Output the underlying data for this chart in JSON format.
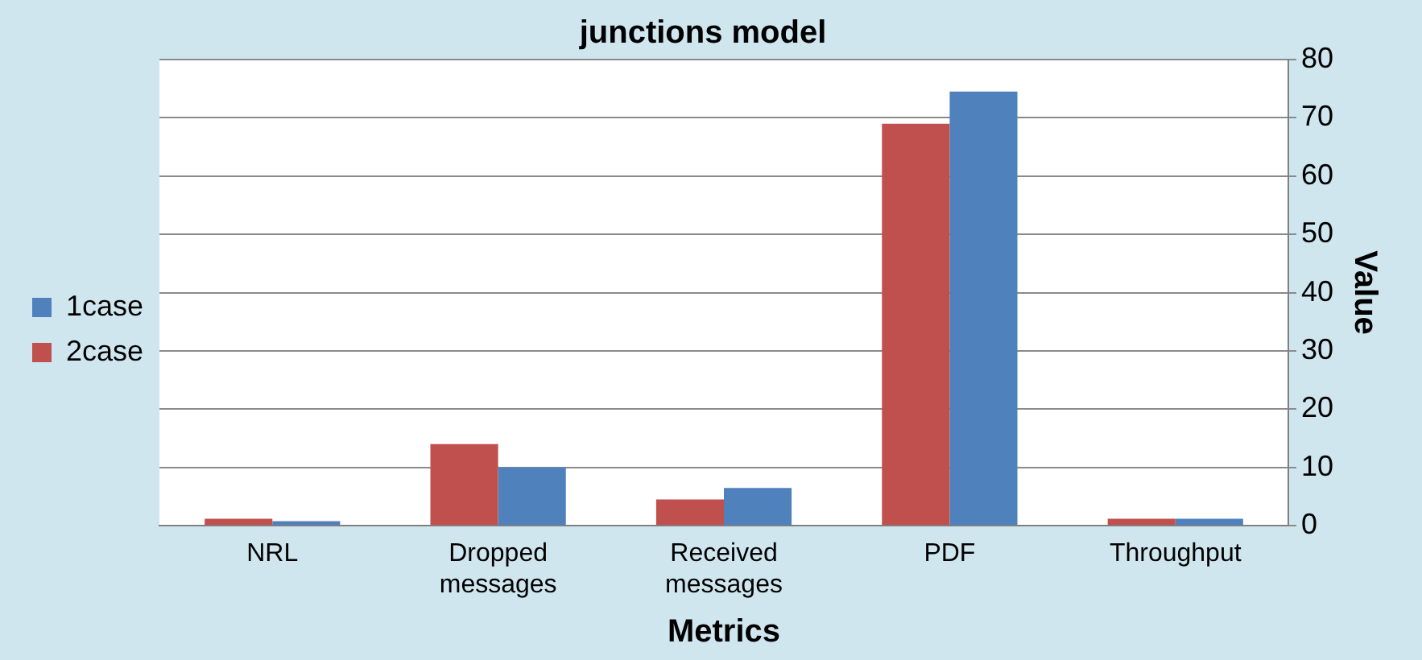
{
  "chart_data": {
    "type": "bar",
    "title": "junctions model",
    "xlabel": "Metrics",
    "ylabel": "Value",
    "categories": [
      "NRL",
      "Dropped messages",
      "Received messages",
      "PDF",
      "Throughput"
    ],
    "series": [
      {
        "name": "2case",
        "color": "#c0504d",
        "values": [
          1.2,
          14,
          4.5,
          69,
          1.2
        ]
      },
      {
        "name": "1case",
        "color": "#4f81bd",
        "values": [
          0.8,
          10,
          6.5,
          74.5,
          1.2
        ]
      }
    ],
    "ylim": [
      0,
      80
    ],
    "yticks": [
      0,
      10,
      20,
      30,
      40,
      50,
      60,
      70,
      80
    ],
    "grid": "y",
    "legend": "left"
  }
}
